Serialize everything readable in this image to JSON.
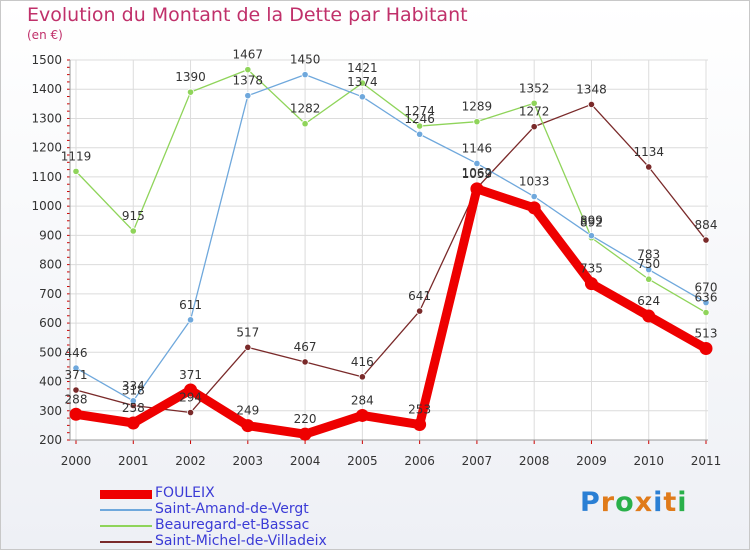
{
  "title": "Evolution du Montant de la Dette par Habitant",
  "subtitle": "(en €)",
  "logo": {
    "text": "Proxiti",
    "letter_colors": [
      "#2a7fd4",
      "#e07b1a",
      "#2ab04a",
      "#e07b1a",
      "#2a7fd4",
      "#e07b1a",
      "#2ab04a"
    ]
  },
  "chart_data": {
    "type": "line",
    "x": [
      "2000",
      "2001",
      "2002",
      "2003",
      "2004",
      "2005",
      "2006",
      "2007",
      "2008",
      "2009",
      "2010",
      "2011"
    ],
    "ylim": [
      200,
      1500
    ],
    "yticks": [
      200,
      300,
      400,
      500,
      600,
      700,
      800,
      900,
      1000,
      1100,
      1200,
      1300,
      1400,
      1500
    ],
    "grid": true,
    "legend_position": "bottom-left",
    "series": [
      {
        "name": "FOULEIX",
        "color": "#ee0000",
        "values": [
          288,
          258,
          371,
          249,
          220,
          284,
          253,
          1059,
          994,
          735,
          624,
          513
        ],
        "labels": [
          "288",
          "258",
          "371",
          "249",
          "220",
          "284",
          "253",
          "1059",
          "",
          "735",
          "624",
          "513"
        ]
      },
      {
        "name": "Saint-Amand-de-Vergt",
        "color": "#6fa8dc",
        "values": [
          446,
          334,
          611,
          1378,
          1450,
          1374,
          1246,
          1146,
          1033,
          899,
          783,
          670
        ],
        "labels": [
          "446",
          "334",
          "611",
          "1378",
          "1450",
          "1374",
          "1246",
          "1146",
          "1033",
          "899",
          "783",
          "670"
        ]
      },
      {
        "name": "Beauregard-et-Bassac",
        "color": "#8fd45a",
        "values": [
          1119,
          915,
          1390,
          1467,
          1282,
          1421,
          1274,
          1289,
          1352,
          892,
          750,
          636
        ],
        "labels": [
          "1119",
          "915",
          "1390",
          "1467",
          "1282",
          "1421",
          "1274",
          "1289",
          "1352",
          "892",
          "750",
          "636"
        ]
      },
      {
        "name": "Saint-Michel-de-Villadeix",
        "color": "#7a2a2a",
        "values": [
          371,
          318,
          294,
          517,
          467,
          416,
          641,
          1062,
          1272,
          1348,
          1134,
          884
        ],
        "labels": [
          "371",
          "318",
          "294",
          "517",
          "467",
          "416",
          "641",
          "1062",
          "1272",
          "1348",
          "1134",
          "884"
        ]
      }
    ]
  }
}
